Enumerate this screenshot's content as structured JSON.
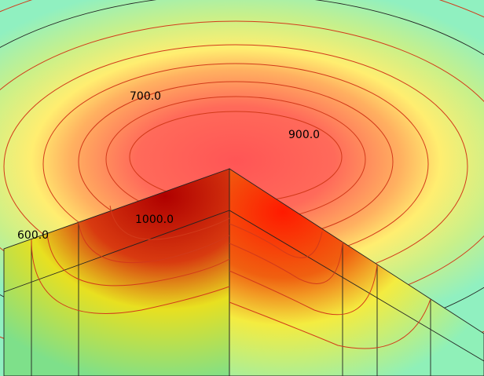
{
  "contour_labels": [
    "700.0",
    "900.0",
    "1000.0",
    "600.0"
  ]
}
